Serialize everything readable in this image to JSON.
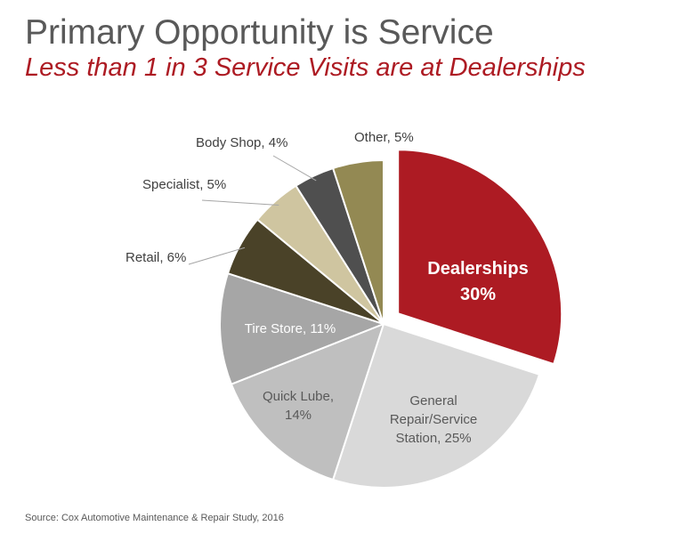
{
  "title": "Primary Opportunity is Service",
  "subtitle": "Less than 1 in 3 Service Visits are at Dealerships",
  "source": "Source: Cox Automotive Maintenance & Repair Study, 2016",
  "chart_data": {
    "type": "pie",
    "slices": [
      {
        "label": [
          "Dealerships",
          "30%"
        ],
        "category": "Dealerships",
        "value": 30,
        "color": "#ad1b23",
        "text_color": "#ffffff",
        "exploded": true
      },
      {
        "label": [
          "General",
          "Repair/Service",
          "Station, 25%"
        ],
        "category": "General Repair/Service Station",
        "value": 25,
        "color": "#d9d9d9",
        "text_color": "#595959"
      },
      {
        "label": [
          "Quick Lube,",
          "14%"
        ],
        "category": "Quick Lube",
        "value": 14,
        "color": "#bfbfbf",
        "text_color": "#595959"
      },
      {
        "label": [
          "Tire Store, 11%"
        ],
        "category": "Tire Store",
        "value": 11,
        "color": "#a6a6a6",
        "text_color": "#ffffff"
      },
      {
        "label": [
          "Retail, 6%"
        ],
        "category": "Retail",
        "value": 6,
        "color": "#4a4228",
        "text_color": "#404040",
        "callout": true
      },
      {
        "label": [
          "Specialist, 5%"
        ],
        "category": "Specialist",
        "value": 5,
        "color": "#cfc5a0",
        "text_color": "#404040",
        "callout": true
      },
      {
        "label": [
          "Body Shop, 4%"
        ],
        "category": "Body Shop",
        "value": 4,
        "color": "#4f4f4f",
        "text_color": "#404040",
        "callout": true
      },
      {
        "label": [
          "Other, 5%"
        ],
        "category": "Other",
        "value": 5,
        "color": "#938953",
        "text_color": "#404040",
        "callout": true
      }
    ]
  }
}
